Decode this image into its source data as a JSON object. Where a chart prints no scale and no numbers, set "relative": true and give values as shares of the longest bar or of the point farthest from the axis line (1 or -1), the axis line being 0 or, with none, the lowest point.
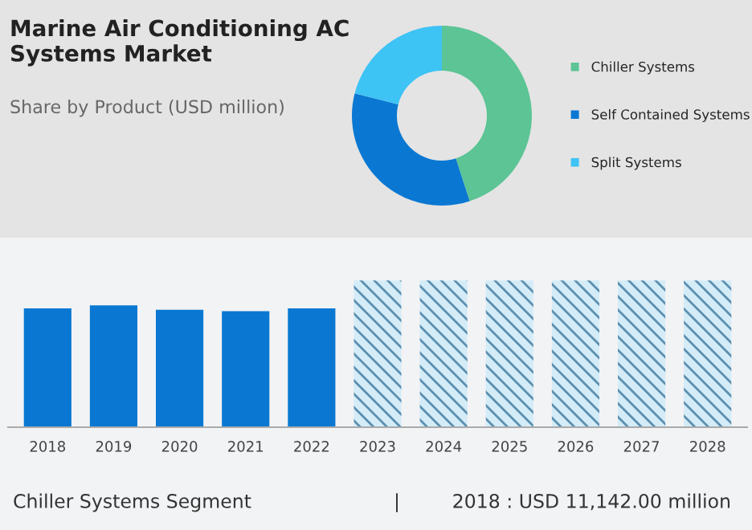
{
  "chart_data": [
    {
      "type": "donut",
      "title": "Marine Air Conditioning AC Systems Market",
      "subtitle": "Share by Product (USD million)",
      "categories": [
        "Chiller Systems",
        "Self Contained Systems",
        "Split Systems"
      ],
      "values": [
        45,
        34,
        21
      ],
      "colors": [
        "#5cc495",
        "#0a78d2",
        "#3ec3f5"
      ],
      "legend": "right"
    },
    {
      "type": "bar",
      "relative": true,
      "categories": [
        "2018",
        "2019",
        "2020",
        "2021",
        "2022",
        "2023",
        "2024",
        "2025",
        "2026",
        "2027",
        "2028"
      ],
      "series": [
        {
          "color": "#0a78d2",
          "values": [
            0.81,
            0.83,
            0.8,
            0.79,
            0.81,
            null,
            null,
            null,
            null,
            null,
            null
          ]
        },
        {
          "color": "#d4ecf7",
          "values": [
            null,
            null,
            null,
            null,
            null,
            1,
            1,
            1,
            1,
            1,
            1
          ]
        }
      ],
      "annotations": [
        "Chiller Systems Segment",
        "|",
        "2018 : USD 11,142.00 million"
      ]
    }
  ]
}
